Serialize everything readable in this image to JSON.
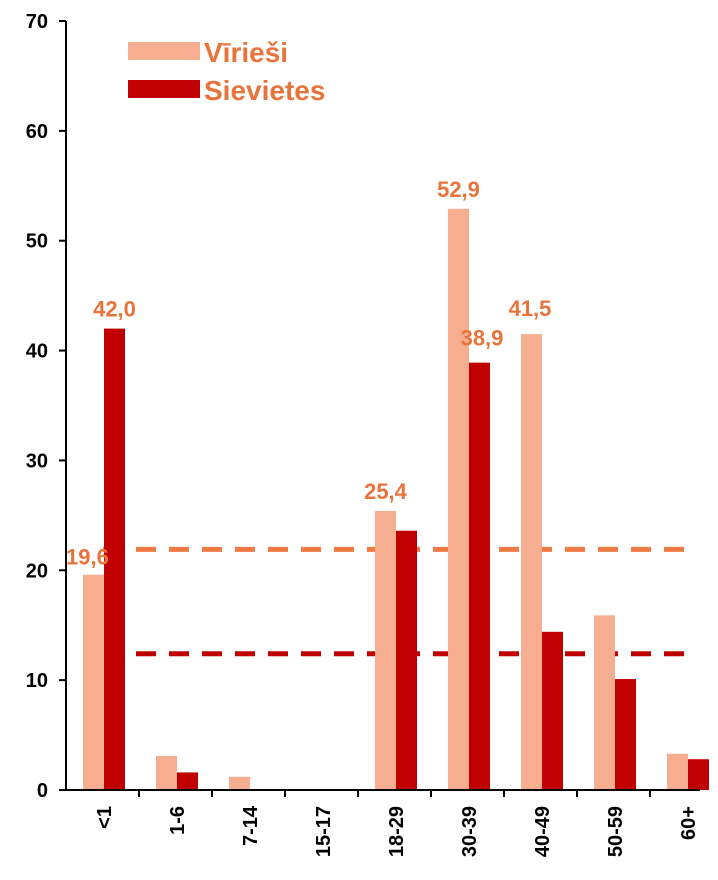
{
  "chart_data": {
    "type": "bar",
    "categories": [
      "<1",
      "1-6",
      "7-14",
      "15-17",
      "18-29",
      "30-39",
      "40-49",
      "50-59",
      "60+"
    ],
    "series": [
      {
        "name": "Vīrieši",
        "values": [
          19.6,
          3.1,
          1.2,
          0,
          25.4,
          52.9,
          41.5,
          15.9,
          3.3
        ],
        "color": "#f7ae90"
      },
      {
        "name": "Sievietes",
        "values": [
          42.0,
          1.6,
          0,
          0,
          23.6,
          38.9,
          14.4,
          10.1,
          2.8
        ],
        "color": "#c00000"
      }
    ],
    "data_labels": [
      {
        "series": 0,
        "index": 0,
        "text": "19,6"
      },
      {
        "series": 1,
        "index": 0,
        "text": "42,0"
      },
      {
        "series": 0,
        "index": 4,
        "text": "25,4"
      },
      {
        "series": 0,
        "index": 5,
        "text": "52,9"
      },
      {
        "series": 1,
        "index": 5,
        "text": "38,9"
      },
      {
        "series": 0,
        "index": 6,
        "text": "41,5"
      }
    ],
    "reference_lines": [
      {
        "series": 0,
        "value": 21.9,
        "color": "#f07a44",
        "style": "dashed"
      },
      {
        "series": 1,
        "value": 12.4,
        "color": "#c00000",
        "style": "dashed"
      }
    ],
    "ylim": [
      0,
      70
    ],
    "yticks": [
      0,
      10,
      20,
      30,
      40,
      50,
      60,
      70
    ],
    "grid": false,
    "legend_position": "top-left",
    "label_color": "#e8743b"
  }
}
